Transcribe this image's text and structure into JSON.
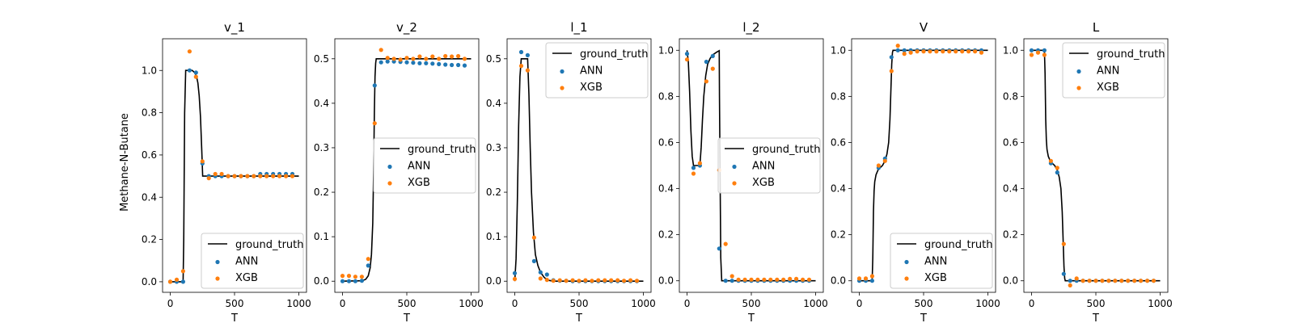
{
  "figure": {
    "ylabel": "Methane-N-Butane",
    "colors": {
      "ground_truth": "#000000",
      "ANN": "#1f77b4",
      "XGB": "#ff7f0e"
    }
  },
  "chart_data": [
    {
      "type": "line",
      "title": "v_1",
      "xlabel": "T",
      "ylabel": "Methane-N-Butane",
      "xlim": [
        -60,
        1060
      ],
      "ylim": [
        -0.05,
        1.15
      ],
      "xticks": [
        0,
        500,
        1000
      ],
      "yticks": [
        0.0,
        0.2,
        0.4,
        0.6,
        0.8,
        1.0
      ],
      "ytick_labels": [
        "0.0",
        "0.2",
        "0.4",
        "0.6",
        "0.8",
        "1.0"
      ],
      "legend": {
        "position": "lower right",
        "entries": [
          "ground_truth",
          "ANN",
          "XGB"
        ]
      },
      "series": [
        {
          "name": "ground_truth",
          "kind": "line",
          "x": [
            0,
            100,
            105,
            112,
            120,
            150,
            170,
            190,
            205,
            215,
            225,
            235,
            245,
            252,
            260,
            300,
            500,
            800,
            1000
          ],
          "y": [
            0,
            0,
            0.2,
            0.8,
            1.0,
            1.0,
            1.0,
            0.99,
            0.97,
            0.94,
            0.88,
            0.78,
            0.62,
            0.5,
            0.5,
            0.5,
            0.5,
            0.5,
            0.5
          ]
        },
        {
          "name": "ANN",
          "kind": "scatter",
          "x": [
            0,
            50,
            100,
            150,
            200,
            250,
            300,
            350,
            400,
            450,
            500,
            550,
            600,
            650,
            700,
            750,
            800,
            850,
            900,
            950
          ],
          "y": [
            0.0,
            0.0,
            0.0,
            1.0,
            0.99,
            0.56,
            0.5,
            0.5,
            0.5,
            0.5,
            0.5,
            0.5,
            0.5,
            0.5,
            0.51,
            0.51,
            0.51,
            0.51,
            0.51,
            0.51
          ]
        },
        {
          "name": "XGB",
          "kind": "scatter",
          "x": [
            0,
            50,
            100,
            150,
            200,
            250,
            300,
            350,
            400,
            450,
            500,
            550,
            600,
            650,
            700,
            750,
            800,
            850,
            900,
            950
          ],
          "y": [
            0.0,
            0.01,
            0.05,
            1.09,
            0.97,
            0.57,
            0.49,
            0.51,
            0.51,
            0.5,
            0.5,
            0.5,
            0.5,
            0.5,
            0.5,
            0.5,
            0.5,
            0.5,
            0.5,
            0.5
          ]
        }
      ]
    },
    {
      "type": "line",
      "title": "v_2",
      "xlabel": "T",
      "xlim": [
        -60,
        1060
      ],
      "ylim": [
        -0.025,
        0.545
      ],
      "xticks": [
        0,
        500,
        1000
      ],
      "yticks": [
        0.0,
        0.1,
        0.2,
        0.3,
        0.4,
        0.5
      ],
      "ytick_labels": [
        "0.0",
        "0.1",
        "0.2",
        "0.3",
        "0.4",
        "0.5"
      ],
      "legend": {
        "position": "center right",
        "entries": [
          "ground_truth",
          "ANN",
          "XGB"
        ]
      },
      "series": [
        {
          "name": "ground_truth",
          "kind": "line",
          "x": [
            0,
            150,
            180,
            200,
            215,
            225,
            235,
            242,
            248,
            253,
            258,
            262,
            300,
            500,
            800,
            1000
          ],
          "y": [
            0,
            0.001,
            0.004,
            0.012,
            0.03,
            0.06,
            0.13,
            0.25,
            0.38,
            0.46,
            0.49,
            0.5,
            0.5,
            0.5,
            0.5,
            0.5
          ]
        },
        {
          "name": "ANN",
          "kind": "scatter",
          "x": [
            0,
            50,
            100,
            150,
            200,
            250,
            300,
            350,
            400,
            450,
            500,
            550,
            600,
            650,
            700,
            750,
            800,
            850,
            900,
            950
          ],
          "y": [
            0.0,
            0.0,
            0.0,
            0.001,
            0.035,
            0.44,
            0.492,
            0.494,
            0.494,
            0.493,
            0.492,
            0.491,
            0.49,
            0.49,
            0.489,
            0.488,
            0.487,
            0.486,
            0.486,
            0.485
          ]
        },
        {
          "name": "XGB",
          "kind": "scatter",
          "x": [
            0,
            50,
            100,
            150,
            200,
            250,
            300,
            350,
            400,
            450,
            500,
            550,
            600,
            650,
            700,
            750,
            800,
            850,
            900,
            950
          ],
          "y": [
            0.012,
            0.012,
            0.01,
            0.01,
            0.05,
            0.355,
            0.52,
            0.502,
            0.5,
            0.498,
            0.502,
            0.5,
            0.505,
            0.5,
            0.505,
            0.5,
            0.506,
            0.505,
            0.506,
            0.5
          ]
        }
      ]
    },
    {
      "type": "line",
      "title": "l_1",
      "xlabel": "T",
      "xlim": [
        -60,
        1060
      ],
      "ylim": [
        -0.025,
        0.545
      ],
      "xticks": [
        0,
        500,
        1000
      ],
      "yticks": [
        0.0,
        0.1,
        0.2,
        0.3,
        0.4,
        0.5
      ],
      "ytick_labels": [
        "0.0",
        "0.1",
        "0.2",
        "0.3",
        "0.4",
        "0.5"
      ],
      "legend": {
        "position": "upper right",
        "entries": [
          "ground_truth",
          "ANN",
          "XGB"
        ]
      },
      "series": [
        {
          "name": "ground_truth",
          "kind": "line",
          "x": [
            0,
            10,
            20,
            30,
            40,
            50,
            100,
            110,
            120,
            130,
            145,
            160,
            180,
            200,
            230,
            260,
            300,
            400,
            600,
            1000
          ],
          "y": [
            0.0,
            0.05,
            0.18,
            0.35,
            0.46,
            0.5,
            0.5,
            0.42,
            0.3,
            0.2,
            0.11,
            0.06,
            0.035,
            0.02,
            0.008,
            0.002,
            0.0,
            0.0,
            0.0,
            0.0
          ]
        },
        {
          "name": "ANN",
          "kind": "scatter",
          "x": [
            0,
            50,
            100,
            150,
            200,
            250,
            300,
            350,
            400,
            450,
            500,
            550,
            600,
            650,
            700,
            750,
            800,
            850,
            900,
            950
          ],
          "y": [
            0.018,
            0.515,
            0.508,
            0.045,
            0.02,
            0.015,
            0.002,
            0.001,
            0.001,
            0.0,
            0.0,
            0.0,
            0.0,
            0.0,
            0.0,
            0.0,
            0.0,
            0.0,
            0.0,
            0.0
          ]
        },
        {
          "name": "XGB",
          "kind": "scatter",
          "x": [
            0,
            50,
            100,
            150,
            200,
            250,
            300,
            350,
            400,
            450,
            500,
            550,
            600,
            650,
            700,
            750,
            800,
            850,
            900,
            950
          ],
          "y": [
            0.005,
            0.484,
            0.474,
            0.098,
            0.006,
            0.003,
            0.001,
            0.002,
            0.001,
            0.002,
            0.001,
            0.002,
            0.001,
            0.002,
            0.002,
            0.002,
            0.002,
            0.001,
            0.002,
            0.001
          ]
        }
      ]
    },
    {
      "type": "line",
      "title": "l_2",
      "xlabel": "T",
      "xlim": [
        -60,
        1060
      ],
      "ylim": [
        -0.05,
        1.05
      ],
      "xticks": [
        0,
        500,
        1000
      ],
      "yticks": [
        0.0,
        0.2,
        0.4,
        0.6,
        0.8,
        1.0
      ],
      "ytick_labels": [
        "0.0",
        "0.2",
        "0.4",
        "0.6",
        "0.8",
        "1.0"
      ],
      "legend": {
        "position": "center right",
        "entries": [
          "ground_truth",
          "ANN",
          "XGB"
        ]
      },
      "series": [
        {
          "name": "ground_truth",
          "kind": "line",
          "x": [
            0,
            10,
            20,
            30,
            40,
            50,
            100,
            110,
            120,
            130,
            145,
            160,
            180,
            200,
            230,
            250,
            252,
            262,
            270,
            500,
            1000
          ],
          "y": [
            1.0,
            0.95,
            0.82,
            0.65,
            0.54,
            0.5,
            0.5,
            0.58,
            0.7,
            0.8,
            0.89,
            0.94,
            0.965,
            0.98,
            0.992,
            0.998,
            0.8,
            0.1,
            0.0,
            0.0,
            0.0
          ]
        },
        {
          "name": "ANN",
          "kind": "scatter",
          "x": [
            0,
            50,
            100,
            150,
            200,
            250,
            300,
            350,
            400,
            450,
            500,
            550,
            600,
            650,
            700,
            750,
            800,
            850,
            900,
            950
          ],
          "y": [
            0.985,
            0.49,
            0.5,
            0.95,
            0.975,
            0.14,
            0.0,
            0.0,
            0.0,
            0.0,
            0.0,
            0.0,
            0.0,
            0.0,
            0.0,
            0.0,
            0.0,
            0.0,
            0.0,
            0.0
          ]
        },
        {
          "name": "XGB",
          "kind": "scatter",
          "x": [
            0,
            50,
            100,
            150,
            200,
            250,
            300,
            350,
            400,
            450,
            500,
            550,
            600,
            650,
            700,
            750,
            800,
            850,
            900,
            950
          ],
          "y": [
            0.96,
            0.465,
            0.51,
            0.865,
            0.92,
            0.48,
            0.16,
            0.02,
            0.005,
            0.005,
            0.005,
            0.005,
            0.005,
            0.005,
            0.005,
            0.005,
            0.008,
            0.008,
            0.005,
            0.005
          ]
        }
      ]
    },
    {
      "type": "line",
      "title": "V",
      "xlabel": "T",
      "xlim": [
        -60,
        1060
      ],
      "ylim": [
        -0.05,
        1.05
      ],
      "xticks": [
        0,
        500,
        1000
      ],
      "yticks": [
        0.0,
        0.2,
        0.4,
        0.6,
        0.8,
        1.0
      ],
      "ytick_labels": [
        "0.0",
        "0.2",
        "0.4",
        "0.6",
        "0.8",
        "1.0"
      ],
      "legend": {
        "position": "lower right",
        "entries": [
          "ground_truth",
          "ANN",
          "XGB"
        ]
      },
      "series": [
        {
          "name": "ground_truth",
          "kind": "line",
          "x": [
            0,
            100,
            105,
            110,
            115,
            120,
            130,
            145,
            160,
            180,
            200,
            215,
            228,
            238,
            246,
            252,
            258,
            262,
            300,
            500,
            1000
          ],
          "y": [
            0,
            0,
            0.1,
            0.3,
            0.39,
            0.43,
            0.46,
            0.48,
            0.49,
            0.5,
            0.52,
            0.55,
            0.6,
            0.7,
            0.83,
            0.94,
            0.99,
            1.0,
            1.0,
            1.0,
            1.0
          ]
        },
        {
          "name": "ANN",
          "kind": "scatter",
          "x": [
            0,
            50,
            100,
            150,
            200,
            250,
            300,
            350,
            400,
            450,
            500,
            550,
            600,
            650,
            700,
            750,
            800,
            850,
            900,
            950
          ],
          "y": [
            0.0,
            0.0,
            0.0,
            0.49,
            0.53,
            0.97,
            1.0,
            1.0,
            1.0,
            1.0,
            1.0,
            1.0,
            1.0,
            1.0,
            1.0,
            1.0,
            1.0,
            1.0,
            1.0,
            1.0
          ]
        },
        {
          "name": "XGB",
          "kind": "scatter",
          "x": [
            0,
            50,
            100,
            150,
            200,
            250,
            300,
            350,
            400,
            450,
            500,
            550,
            600,
            650,
            700,
            750,
            800,
            850,
            900,
            950
          ],
          "y": [
            0.01,
            0.01,
            0.02,
            0.5,
            0.52,
            0.91,
            1.02,
            0.985,
            0.99,
            0.995,
            0.995,
            0.995,
            0.995,
            0.995,
            0.995,
            0.995,
            0.995,
            0.995,
            0.995,
            0.99
          ]
        }
      ]
    },
    {
      "type": "line",
      "title": "L",
      "xlabel": "T",
      "xlim": [
        -60,
        1060
      ],
      "ylim": [
        -0.05,
        1.05
      ],
      "xticks": [
        0,
        500,
        1000
      ],
      "yticks": [
        0.0,
        0.2,
        0.4,
        0.6,
        0.8,
        1.0
      ],
      "ytick_labels": [
        "0.0",
        "0.2",
        "0.4",
        "0.6",
        "0.8",
        "1.0"
      ],
      "legend": {
        "position": "upper right",
        "entries": [
          "ground_truth",
          "ANN",
          "XGB"
        ]
      },
      "series": [
        {
          "name": "ground_truth",
          "kind": "line",
          "x": [
            0,
            100,
            105,
            110,
            115,
            120,
            130,
            145,
            160,
            180,
            200,
            215,
            228,
            238,
            246,
            252,
            258,
            262,
            300,
            500,
            1000
          ],
          "y": [
            1.0,
            1.0,
            0.9,
            0.7,
            0.61,
            0.57,
            0.54,
            0.52,
            0.51,
            0.5,
            0.48,
            0.45,
            0.4,
            0.3,
            0.17,
            0.06,
            0.01,
            0.0,
            0.0,
            0.0,
            0.0
          ]
        },
        {
          "name": "ANN",
          "kind": "scatter",
          "x": [
            0,
            50,
            100,
            150,
            200,
            250,
            300,
            350,
            400,
            450,
            500,
            550,
            600,
            650,
            700,
            750,
            800,
            850,
            900,
            950
          ],
          "y": [
            1.0,
            1.0,
            1.0,
            0.51,
            0.47,
            0.03,
            0.0,
            0.0,
            0.0,
            0.0,
            0.0,
            0.0,
            0.0,
            0.0,
            0.0,
            0.0,
            0.0,
            0.0,
            0.0,
            0.0
          ]
        },
        {
          "name": "XGB",
          "kind": "scatter",
          "x": [
            0,
            50,
            100,
            150,
            200,
            250,
            300,
            350,
            400,
            450,
            500,
            550,
            600,
            650,
            700,
            750,
            800,
            850,
            900,
            950
          ],
          "y": [
            0.98,
            0.99,
            0.98,
            0.52,
            0.49,
            0.16,
            -0.02,
            0.01,
            0.0,
            0.0,
            0.0,
            0.0,
            0.0,
            0.0,
            0.0,
            0.0,
            0.0,
            0.0,
            0.0,
            0.0
          ]
        }
      ]
    }
  ]
}
